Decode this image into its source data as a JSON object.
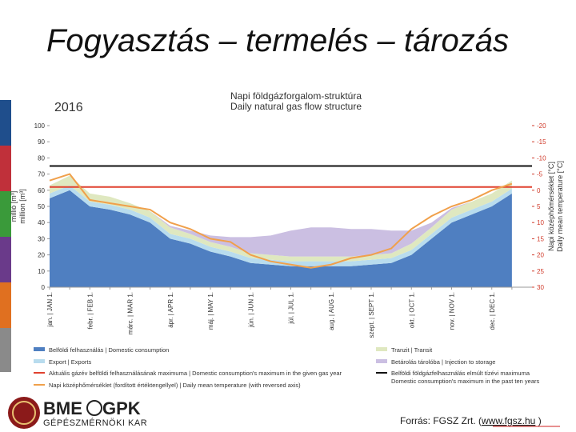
{
  "slide_title": "Fogyasztás – termelés – tározás",
  "chart_data": {
    "type": "area",
    "stacked": true,
    "year": "2016",
    "title": [
      "Napi földgázforgalom-struktúra",
      "Daily natural gas flow structure"
    ],
    "ylabel": [
      "millió [m³]",
      "million [m³]"
    ],
    "y2label": [
      "Napi középhőmérséklet [°C]",
      "Daily mean temperature [°C]"
    ],
    "categories": [
      "jan. | JAN 1.",
      null,
      "febr. | FEB 1.",
      null,
      "márc. | MAR 1.",
      null,
      "ápr. | APR 1.",
      null,
      "máj. | MAY 1.",
      null,
      "jún. | JUN 1.",
      null,
      "júl. | JUL 1.",
      null,
      "aug. | AUG 1.",
      null,
      "szept. | SEPT 1.",
      null,
      "okt. | OCT 1.",
      null,
      "nov. | NOV 1.",
      null,
      "dec. | DEC 1.",
      null
    ],
    "series": [
      {
        "name": "Belföldi felhasználás | Domestic consumption",
        "color": "#4f7fc1",
        "values": [
          55,
          60,
          50,
          48,
          45,
          40,
          30,
          27,
          22,
          19,
          15,
          14,
          13,
          13,
          13,
          13,
          14,
          15,
          20,
          30,
          40,
          45,
          50,
          58
        ]
      },
      {
        "name": "Export | Exports",
        "color": "#b8dcee",
        "values": [
          3,
          3,
          3,
          3,
          3,
          3,
          3,
          3,
          3,
          3,
          3,
          3,
          3,
          3,
          3,
          3,
          3,
          3,
          3,
          3,
          3,
          3,
          3,
          3
        ]
      },
      {
        "name": "Tranzit | Transit",
        "color": "#dfe8c0",
        "values": [
          5,
          6,
          5,
          5,
          4,
          4,
          4,
          3,
          3,
          3,
          3,
          3,
          3,
          3,
          3,
          3,
          3,
          3,
          4,
          4,
          5,
          5,
          5,
          5
        ]
      },
      {
        "name": "Betárolás tárolóba | Injection to storage",
        "color": "#cbbfe2",
        "values": [
          0,
          0,
          0,
          0,
          0,
          0,
          1,
          2,
          4,
          6,
          10,
          12,
          16,
          18,
          18,
          17,
          16,
          14,
          8,
          3,
          1,
          0,
          0,
          0
        ]
      }
    ],
    "reference_lines": [
      {
        "name": [
          "Aktuális gázév belföldi felhasználásának maximuma | Domestic consumption's maximum in the given gas year"
        ],
        "color": "#e0412f",
        "value": 62
      },
      {
        "name": [
          "Belföldi földgázfelhasználás elmúlt tízévi maximuma",
          "Domestic consumption's maximum in the past ten years"
        ],
        "color": "#111111",
        "value": 75
      }
    ],
    "line_series": [
      {
        "name": "Napi középhőmérséklet (fordított értéktengellyel) | Daily mean temperature (with reversed axis)",
        "color": "#f0a04b",
        "axis": "y2",
        "values": [
          -3,
          -5,
          3,
          4,
          5,
          6,
          10,
          12,
          15,
          16,
          20,
          22,
          23,
          24,
          23,
          21,
          20,
          18,
          12,
          8,
          5,
          3,
          0,
          -2
        ]
      }
    ],
    "ylim": [
      0,
      100
    ],
    "yticks": [
      0,
      10,
      20,
      30,
      40,
      50,
      60,
      70,
      80,
      90,
      100
    ],
    "y2lim": [
      30,
      -20
    ],
    "y2ticks": [
      -20,
      -15,
      -10,
      -5,
      0,
      5,
      10,
      15,
      20,
      25,
      30
    ]
  },
  "logo": {
    "left": "BME",
    "right": "GPK",
    "subtitle": "GÉPÉSZMÉRNÖKI KAR"
  },
  "source": {
    "prefix": "Forrás: FGSZ Zrt. (",
    "link": "www.fgsz.hu",
    "suffix": " )"
  }
}
